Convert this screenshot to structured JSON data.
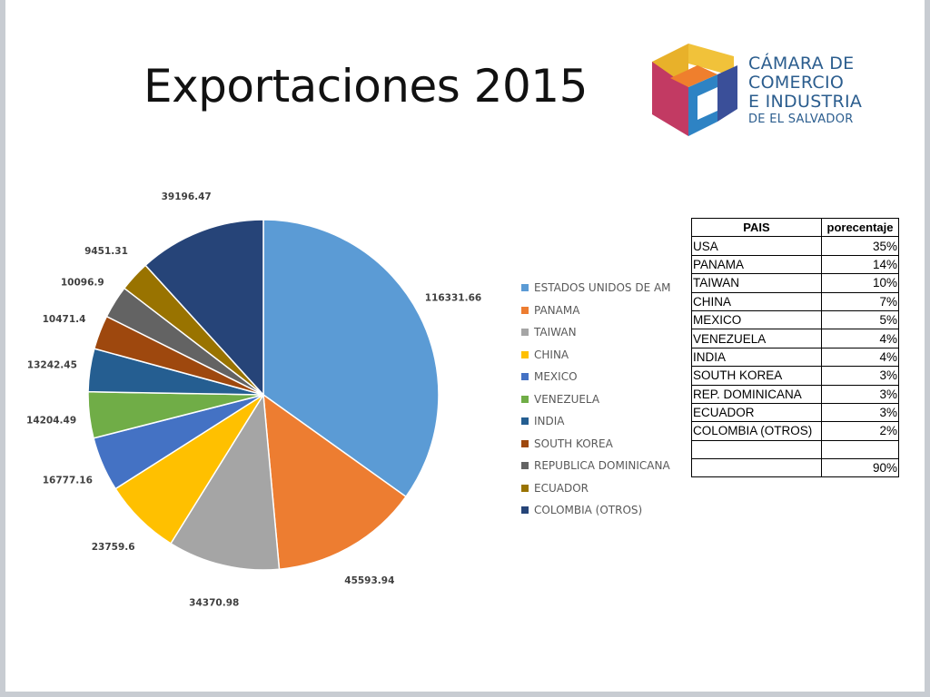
{
  "slide": {
    "title": "Exportaciones 2015"
  },
  "logo": {
    "lines": [
      "CÁMARA DE",
      "COMERCIO",
      "E INDUSTRIA",
      "DE EL SALVADOR"
    ]
  },
  "table": {
    "headers": [
      "PAIS",
      "porecentaje"
    ],
    "rows": [
      [
        "USA",
        "35%"
      ],
      [
        "PANAMA",
        "14%"
      ],
      [
        "TAIWAN",
        "10%"
      ],
      [
        "CHINA",
        "7%"
      ],
      [
        "MEXICO",
        "5%"
      ],
      [
        "VENEZUELA",
        "4%"
      ],
      [
        "INDIA",
        "4%"
      ],
      [
        "SOUTH KOREA",
        "3%"
      ],
      [
        "REP. DOMINICANA",
        "3%"
      ],
      [
        "ECUADOR",
        "3%"
      ],
      [
        "COLOMBIA (OTROS)",
        "2%"
      ],
      [
        "",
        ""
      ],
      [
        "",
        "90%"
      ]
    ]
  },
  "chart_data": {
    "type": "pie",
    "title": "",
    "categories": [
      "ESTADOS UNIDOS DE AMERICA",
      "PANAMA",
      "TAIWAN",
      "CHINA",
      "MEXICO",
      "VENEZUELA",
      "INDIA",
      "SOUTH KOREA",
      "REPUBLICA DOMINICANA",
      "ECUADOR",
      "COLOMBIA (OTROS)"
    ],
    "legend_labels": [
      "ESTADOS UNIDOS DE AM",
      "PANAMA",
      "TAIWAN",
      "CHINA",
      "MEXICO",
      "VENEZUELA",
      "INDIA",
      "SOUTH KOREA",
      "REPUBLICA DOMINICANA",
      "ECUADOR",
      "COLOMBIA (OTROS)"
    ],
    "values": [
      116331.66,
      45593.94,
      34370.98,
      23759.6,
      16777.16,
      14204.49,
      13242.45,
      10471.4,
      10096.9,
      9451.31,
      39196.47
    ],
    "value_labels": [
      "116331.66",
      "45593.94",
      "34370.98",
      "23759.6",
      "16777.16",
      "14204.49",
      "13242.45",
      "10471.4",
      "10096.9",
      "9451.31",
      "39196.47"
    ],
    "colors": [
      "#5b9bd5",
      "#ed7d31",
      "#a5a5a5",
      "#ffc000",
      "#4472c4",
      "#70ad47",
      "#255e91",
      "#9e480e",
      "#636363",
      "#997300",
      "#264478"
    ],
    "legend_position": "right",
    "start_angle_deg": 0,
    "direction": "clockwise"
  }
}
